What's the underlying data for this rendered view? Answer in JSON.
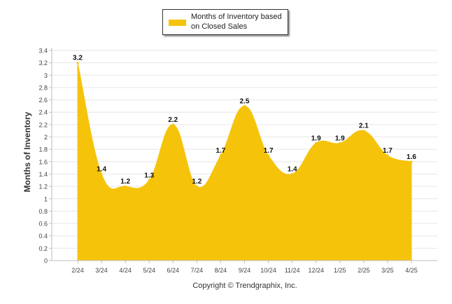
{
  "chart_data": {
    "type": "area",
    "x": [
      "2/24",
      "3/24",
      "4/24",
      "5/24",
      "6/24",
      "7/24",
      "8/24",
      "9/24",
      "10/24",
      "11/24",
      "12/24",
      "1/25",
      "2/25",
      "3/25",
      "4/25"
    ],
    "series": [
      {
        "name": "Months of Inventory based on Closed Sales",
        "values": [
          3.2,
          1.4,
          1.2,
          1.3,
          2.2,
          1.2,
          1.7,
          2.5,
          1.7,
          1.4,
          1.9,
          1.9,
          2.1,
          1.7,
          1.6
        ],
        "color": "#F6C30B"
      }
    ],
    "ylabel": "Months of Inventory",
    "ylim": [
      0,
      3.4
    ],
    "yticks": [
      "0",
      "0.2",
      "0.4",
      "0.6",
      "0.8",
      "1",
      "1.2",
      "1.4",
      "1.6",
      "1.8",
      "2",
      "2.2",
      "2.4",
      "2.6",
      "2.8",
      "3",
      "3.2",
      "3.4"
    ],
    "grid": true,
    "legend_position": "top"
  },
  "legend": {
    "label_line1": "Months of Inventory based",
    "label_line2": "on Closed Sales"
  },
  "footer": {
    "copyright": "Copyright © Trendgraphix, Inc."
  }
}
